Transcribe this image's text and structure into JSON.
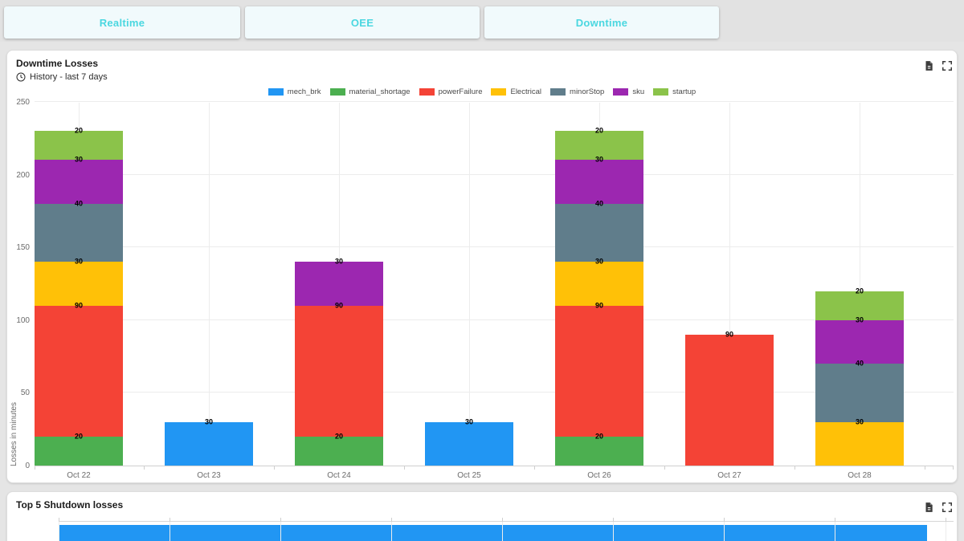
{
  "tabs": [
    {
      "label": "Realtime"
    },
    {
      "label": "OEE"
    },
    {
      "label": "Downtime"
    }
  ],
  "ui_colors": {
    "tab_text": "#4AD7E0",
    "tab_bg": "#F1FAFC",
    "page_bg": "#E5E5E5",
    "card_bg": "#FFFFFF"
  },
  "cards": {
    "downtime": {
      "title": "Downtime Losses",
      "subtitle": "History - last 7 days"
    },
    "shutdown": {
      "title": "Top 5 Shutdown losses"
    }
  },
  "chart_data": [
    {
      "type": "bar",
      "stacked": true,
      "title": "Downtime Losses",
      "xlabel": "",
      "ylabel": "Losses in minutes",
      "ylim": [
        0,
        250
      ],
      "yticks": [
        0,
        50,
        100,
        150,
        200,
        250
      ],
      "grid": true,
      "legend_position": "top",
      "show_segment_values": true,
      "categories": [
        "Oct 22",
        "Oct 23",
        "Oct 24",
        "Oct 25",
        "Oct 26",
        "Oct 27",
        "Oct 28"
      ],
      "series": [
        {
          "name": "mech_brk",
          "color": "#2196F3",
          "values": [
            0,
            30,
            0,
            30,
            0,
            0,
            0
          ]
        },
        {
          "name": "material_shortage",
          "color": "#4CAF50",
          "values": [
            20,
            0,
            20,
            0,
            20,
            0,
            0
          ]
        },
        {
          "name": "powerFailure",
          "color": "#F44336",
          "values": [
            90,
            0,
            90,
            0,
            90,
            90,
            0
          ]
        },
        {
          "name": "Electrical",
          "color": "#FFC107",
          "values": [
            30,
            0,
            0,
            0,
            30,
            0,
            30
          ]
        },
        {
          "name": "minorStop",
          "color": "#607D8B",
          "values": [
            40,
            0,
            0,
            0,
            40,
            0,
            40
          ]
        },
        {
          "name": "sku",
          "color": "#9C27B0",
          "values": [
            30,
            0,
            30,
            0,
            30,
            0,
            30
          ]
        },
        {
          "name": "startup",
          "color": "#8BC34A",
          "values": [
            20,
            0,
            0,
            0,
            20,
            0,
            20
          ]
        }
      ],
      "bar_totals": [
        230,
        30,
        140,
        30,
        230,
        90,
        120
      ]
    },
    {
      "type": "bar",
      "orientation": "horizontal",
      "title": "Top 5 Shutdown losses",
      "bars": [
        {
          "color": "#2196F3",
          "relative_length": 0.97
        }
      ],
      "note": "chart truncated at bottom edge of viewport; only first blue bar partially visible, no axis labels visible"
    }
  ]
}
